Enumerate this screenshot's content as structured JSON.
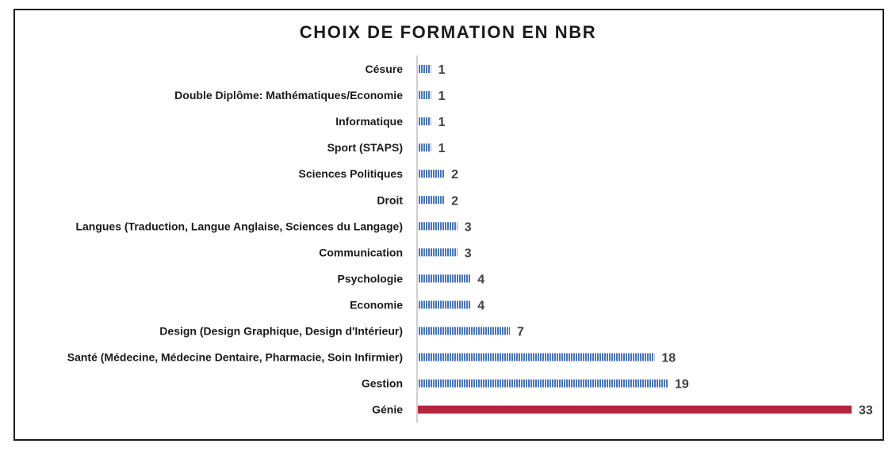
{
  "chart_data": {
    "type": "bar",
    "orientation": "horizontal",
    "title": "CHOIX DE FORMATION EN NBR",
    "xlabel": "",
    "ylabel": "",
    "grid": false,
    "legend": "none",
    "categories": [
      "Césure",
      "Double Diplôme: Mathématiques/Economie",
      "Informatique",
      "Sport (STAPS)",
      "Sciences Politiques",
      "Droit",
      "Langues (Traduction, Langue Anglaise, Sciences du Langage)",
      "Communication",
      "Psychologie",
      "Economie",
      "Design (Design Graphique, Design d'Intérieur)",
      "Santé (Médecine, Médecine Dentaire, Pharmacie, Soin Infirmier)",
      "Gestion",
      "Génie"
    ],
    "values": [
      1,
      1,
      1,
      1,
      2,
      2,
      3,
      3,
      4,
      4,
      7,
      18,
      19,
      33
    ],
    "xlim": [
      0,
      33
    ],
    "colors": {
      "default_bar": "#4472c4",
      "highlight_bar": "#b5253e",
      "axis": "#bfbfbf"
    },
    "highlight_category": "Génie"
  }
}
